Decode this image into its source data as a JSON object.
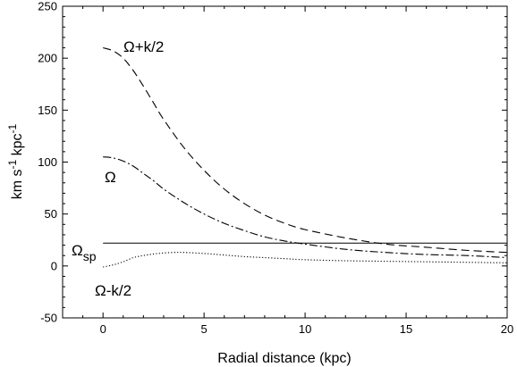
{
  "chart_data": {
    "type": "line",
    "xlabel": "Radial distance (kpc)",
    "ylabel": "km s",
    "ylabel_sup1": "-1",
    "ylabel_mid": " kpc",
    "ylabel_sup2": "-1",
    "xlim": [
      -2,
      20
    ],
    "ylim": [
      -50,
      250
    ],
    "xticks": [
      0,
      5,
      10,
      15,
      20
    ],
    "yticks": [
      -50,
      0,
      50,
      100,
      150,
      200,
      250
    ],
    "grid": false,
    "series": [
      {
        "name": "Ω+k/2",
        "style": "dashed",
        "color": "#000000",
        "x": [
          0,
          0.5,
          1,
          1.5,
          2,
          2.5,
          3,
          4,
          5,
          6,
          7,
          8,
          9,
          10,
          12,
          14,
          16,
          18,
          20
        ],
        "y": [
          210,
          207,
          200,
          188,
          173,
          157,
          141,
          114,
          92,
          74,
          60,
          49,
          41,
          35,
          27,
          21,
          18,
          15,
          13
        ]
      },
      {
        "name": "Ω",
        "style": "dash-dot",
        "color": "#000000",
        "x": [
          0,
          0.5,
          1,
          1.5,
          2,
          2.5,
          3,
          4,
          5,
          6,
          7,
          8,
          9,
          10,
          12,
          14,
          16,
          18,
          20
        ],
        "y": [
          105,
          104,
          101,
          96,
          89,
          82,
          74,
          61,
          50,
          41,
          34,
          28,
          24,
          21,
          16,
          13,
          11,
          10,
          8
        ]
      },
      {
        "name": "Ωsp",
        "style": "solid",
        "color": "#000000",
        "x": [
          0,
          20
        ],
        "y": [
          22,
          22
        ]
      },
      {
        "name": "Ω-k/2",
        "style": "dotted",
        "color": "#000000",
        "x": [
          0,
          0.5,
          1,
          1.5,
          2,
          2.5,
          3,
          3.5,
          4,
          5,
          6,
          7,
          8,
          9,
          10,
          12,
          14,
          16,
          18,
          20
        ],
        "y": [
          -1,
          1,
          4,
          8,
          10,
          11.5,
          12.5,
          13,
          13,
          12,
          10.5,
          9,
          8,
          7,
          6,
          5,
          4.5,
          4,
          3.5,
          3
        ]
      }
    ],
    "annotations": [
      {
        "id": "omega-plus",
        "text": "Ω+k/2"
      },
      {
        "id": "omega",
        "text": "Ω"
      },
      {
        "id": "omega-sp",
        "text": "Ω",
        "sub": "sp"
      },
      {
        "id": "omega-minus",
        "text": "Ω-k/2"
      }
    ]
  }
}
